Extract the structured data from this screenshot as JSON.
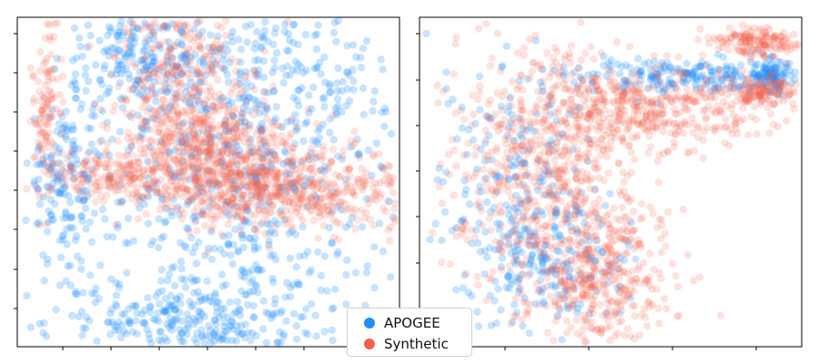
{
  "chart_data": [
    {
      "type": "scatter",
      "title": "",
      "xlabel": "",
      "ylabel": "",
      "tick_labels": "hidden",
      "grid": false,
      "series": [
        {
          "name": "APOGEE",
          "color": "#1e90ff"
        },
        {
          "name": "Synthetic",
          "color": "#f4614a"
        }
      ],
      "clusters": [
        {
          "series": "APOGEE",
          "cx": -0.75,
          "cy": 0.0,
          "sx": 0.1,
          "sy": 0.25,
          "n": 160
        },
        {
          "series": "APOGEE",
          "cx": -0.35,
          "cy": 0.75,
          "sx": 0.2,
          "sy": 0.15,
          "n": 200
        },
        {
          "series": "APOGEE",
          "cx": -0.1,
          "cy": -0.85,
          "sx": 0.35,
          "sy": 0.12,
          "n": 260
        },
        {
          "series": "APOGEE",
          "cx": 0.35,
          "cy": 0.55,
          "sx": 0.35,
          "sy": 0.35,
          "n": 320
        },
        {
          "series": "APOGEE",
          "cx": 0.2,
          "cy": -0.45,
          "sx": 0.45,
          "sy": 0.35,
          "n": 260
        },
        {
          "series": "APOGEE",
          "cx": 0.05,
          "cy": 0.2,
          "sx": 0.4,
          "sy": 0.4,
          "n": 200
        },
        {
          "series": "Synthetic",
          "cx": -0.15,
          "cy": 0.55,
          "sx": 0.18,
          "sy": 0.3,
          "n": 420
        },
        {
          "series": "Synthetic",
          "cx": 0.1,
          "cy": 0.15,
          "sx": 0.18,
          "sy": 0.18,
          "n": 420
        },
        {
          "series": "Synthetic",
          "cx": 0.45,
          "cy": -0.05,
          "sx": 0.35,
          "sy": 0.12,
          "n": 520
        },
        {
          "series": "Synthetic",
          "cx": -0.45,
          "cy": 0.05,
          "sx": 0.2,
          "sy": 0.08,
          "n": 220
        },
        {
          "series": "Synthetic",
          "cx": -0.85,
          "cy": 0.45,
          "sx": 0.04,
          "sy": 0.25,
          "n": 110
        }
      ],
      "xlim": [
        -1,
        1
      ],
      "ylim": [
        -1,
        1
      ]
    },
    {
      "type": "scatter",
      "title": "",
      "xlabel": "",
      "ylabel": "",
      "tick_labels": "hidden",
      "grid": false,
      "series": [
        {
          "name": "APOGEE",
          "color": "#1e90ff"
        },
        {
          "name": "Synthetic",
          "color": "#f4614a"
        }
      ],
      "clusters": [
        {
          "series": "APOGEE",
          "cx": -0.5,
          "cy": 0.0,
          "sx": 0.2,
          "sy": 0.4,
          "n": 220
        },
        {
          "series": "APOGEE",
          "cx": -0.3,
          "cy": -0.5,
          "sx": 0.2,
          "sy": 0.2,
          "n": 160
        },
        {
          "series": "APOGEE",
          "cx": 0.4,
          "cy": 0.65,
          "sx": 0.35,
          "sy": 0.05,
          "n": 220
        },
        {
          "series": "APOGEE",
          "cx": 0.85,
          "cy": 0.65,
          "sx": 0.05,
          "sy": 0.05,
          "n": 90
        },
        {
          "series": "Synthetic",
          "cx": -0.35,
          "cy": 0.1,
          "sx": 0.25,
          "sy": 0.4,
          "n": 620
        },
        {
          "series": "Synthetic",
          "cx": -0.05,
          "cy": -0.55,
          "sx": 0.18,
          "sy": 0.25,
          "n": 420
        },
        {
          "series": "Synthetic",
          "cx": 0.25,
          "cy": 0.45,
          "sx": 0.3,
          "sy": 0.12,
          "n": 420
        },
        {
          "series": "Synthetic",
          "cx": 0.75,
          "cy": 0.85,
          "sx": 0.12,
          "sy": 0.04,
          "n": 160
        },
        {
          "series": "Synthetic",
          "cx": 0.8,
          "cy": 0.55,
          "sx": 0.08,
          "sy": 0.04,
          "n": 120
        }
      ],
      "xlim": [
        -1,
        1
      ],
      "ylim": [
        -1,
        1
      ]
    }
  ],
  "legend": {
    "position": "bottom-center",
    "items": [
      {
        "label": "APOGEE",
        "color": "#1e90ff"
      },
      {
        "label": "Synthetic",
        "color": "#f4614a"
      }
    ]
  }
}
